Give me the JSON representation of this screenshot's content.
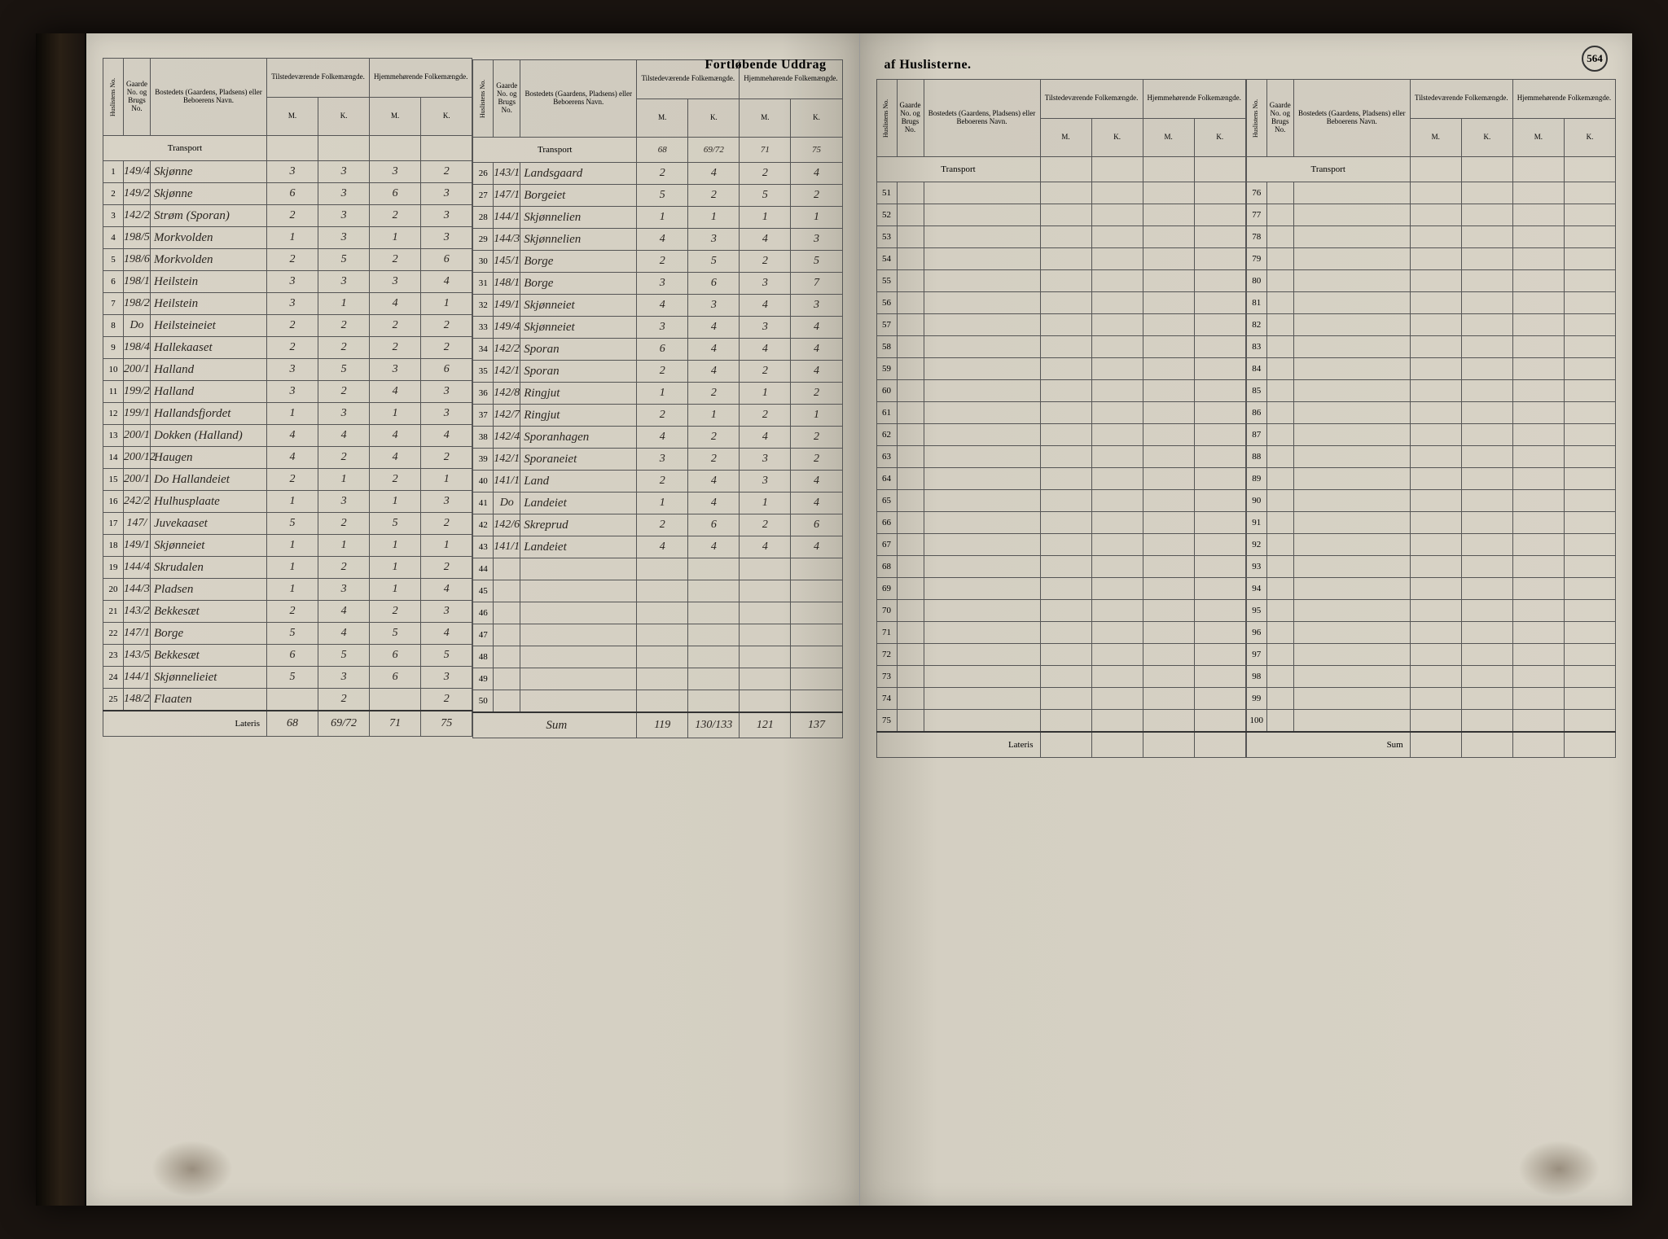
{
  "document": {
    "title": "Fortløbende Uddrag af Huslisterne.",
    "page_number": "564",
    "headers": {
      "huslistens": "Huslistens No.",
      "gaarde": "Gaarde No. og Brugs No.",
      "bosted": "Bostedets (Gaardens, Pladsens) eller Beboerens Navn.",
      "tilstede": "Tilstedeværende Folkemængde.",
      "hjemme": "Hjemmehørende Folkemængde.",
      "m": "M.",
      "k": "K.",
      "transport": "Transport",
      "lateris": "Lateris",
      "sum": "Sum"
    },
    "left_page": {
      "block_a": {
        "transport": [
          "",
          "",
          "",
          ""
        ],
        "rows": [
          {
            "n": "1",
            "g": "149/4",
            "name": "Skjønne",
            "tm": "3",
            "tk": "3",
            "hm": "3",
            "hk": "2"
          },
          {
            "n": "2",
            "g": "149/2",
            "name": "Skjønne",
            "tm": "6",
            "tk": "3",
            "hm": "6",
            "hk": "3"
          },
          {
            "n": "3",
            "g": "142/2",
            "name": "Strøm (Sporan)",
            "tm": "2",
            "tk": "3",
            "hm": "2",
            "hk": "3"
          },
          {
            "n": "4",
            "g": "198/5",
            "name": "Morkvolden",
            "tm": "1",
            "tk": "3",
            "hm": "1",
            "hk": "3"
          },
          {
            "n": "5",
            "g": "198/6",
            "name": "Morkvolden",
            "tm": "2",
            "tk": "5",
            "hm": "2",
            "hk": "6"
          },
          {
            "n": "6",
            "g": "198/1",
            "name": "Heilstein",
            "tm": "3",
            "tk": "3",
            "hm": "3",
            "hk": "4"
          },
          {
            "n": "7",
            "g": "198/2",
            "name": "Heilstein",
            "tm": "3",
            "tk": "1",
            "hm": "4",
            "hk": "1"
          },
          {
            "n": "8",
            "g": "Do",
            "name": "Heilsteineiet",
            "tm": "2",
            "tk": "2",
            "hm": "2",
            "hk": "2"
          },
          {
            "n": "9",
            "g": "198/4",
            "name": "Hallekaaset",
            "tm": "2",
            "tk": "2",
            "hm": "2",
            "hk": "2"
          },
          {
            "n": "10",
            "g": "200/1",
            "name": "Halland",
            "tm": "3",
            "tk": "5",
            "hm": "3",
            "hk": "6"
          },
          {
            "n": "11",
            "g": "199/2",
            "name": "Halland",
            "tm": "3",
            "tk": "2",
            "hm": "4",
            "hk": "3"
          },
          {
            "n": "12",
            "g": "199/1",
            "name": "Hallandsfjordet",
            "tm": "1",
            "tk": "3",
            "hm": "1",
            "hk": "3"
          },
          {
            "n": "13",
            "g": "200/1",
            "name": "Dokken (Halland)",
            "tm": "4",
            "tk": "4",
            "hm": "4",
            "hk": "4"
          },
          {
            "n": "14",
            "g": "200/12",
            "name": "Haugen",
            "tm": "4",
            "tk": "2",
            "hm": "4",
            "hk": "2"
          },
          {
            "n": "15",
            "g": "200/1",
            "name": "Do Hallandeiet",
            "tm": "2",
            "tk": "1",
            "hm": "2",
            "hk": "1"
          },
          {
            "n": "16",
            "g": "242/2",
            "name": "Hulhusplaate",
            "tm": "1",
            "tk": "3",
            "hm": "1",
            "hk": "3"
          },
          {
            "n": "17",
            "g": "147/",
            "name": "Juvekaaset",
            "tm": "5",
            "tk": "2",
            "hm": "5",
            "hk": "2"
          },
          {
            "n": "18",
            "g": "149/1",
            "name": "Skjønneiet",
            "tm": "1",
            "tk": "1",
            "hm": "1",
            "hk": "1"
          },
          {
            "n": "19",
            "g": "144/4",
            "name": "Skrudalen",
            "tm": "1",
            "tk": "2",
            "hm": "1",
            "hk": "2"
          },
          {
            "n": "20",
            "g": "144/3",
            "name": "Pladsen",
            "tm": "1",
            "tk": "3",
            "hm": "1",
            "hk": "4"
          },
          {
            "n": "21",
            "g": "143/2",
            "name": "Bekkesæt",
            "tm": "2",
            "tk": "4",
            "hm": "2",
            "hk": "3"
          },
          {
            "n": "22",
            "g": "147/1",
            "name": "Borge",
            "tm": "5",
            "tk": "4",
            "hm": "5",
            "hk": "4"
          },
          {
            "n": "23",
            "g": "143/5",
            "name": "Bekkesæt",
            "tm": "6",
            "tk": "5",
            "hm": "6",
            "hk": "5"
          },
          {
            "n": "24",
            "g": "144/1",
            "name": "Skjønnelieiet",
            "tm": "5",
            "tk": "3",
            "hm": "6",
            "hk": "3"
          },
          {
            "n": "25",
            "g": "148/2",
            "name": "Flaaten",
            "tm": "",
            "tk": "2",
            "hm": "",
            "hk": "2"
          }
        ],
        "lateris": [
          "68",
          "69/72",
          "71",
          "75"
        ]
      },
      "block_b": {
        "transport": [
          "68",
          "69/72",
          "71",
          "75"
        ],
        "rows": [
          {
            "n": "26",
            "g": "143/1",
            "name": "Landsgaard",
            "tm": "2",
            "tk": "4",
            "hm": "2",
            "hk": "4"
          },
          {
            "n": "27",
            "g": "147/1",
            "name": "Borgeiet",
            "tm": "5",
            "tk": "2",
            "hm": "5",
            "hk": "2"
          },
          {
            "n": "28",
            "g": "144/1",
            "name": "Skjønnelien",
            "tm": "1",
            "tk": "1",
            "hm": "1",
            "hk": "1"
          },
          {
            "n": "29",
            "g": "144/3",
            "name": "Skjønnelien",
            "tm": "4",
            "tk": "3",
            "hm": "4",
            "hk": "3"
          },
          {
            "n": "30",
            "g": "145/1",
            "name": "Borge",
            "tm": "2",
            "tk": "5",
            "hm": "2",
            "hk": "5"
          },
          {
            "n": "31",
            "g": "148/1",
            "name": "Borge",
            "tm": "3",
            "tk": "6",
            "hm": "3",
            "hk": "7"
          },
          {
            "n": "32",
            "g": "149/1",
            "name": "Skjønneiet",
            "tm": "4",
            "tk": "3",
            "hm": "4",
            "hk": "3"
          },
          {
            "n": "33",
            "g": "149/4",
            "name": "Skjønneiet",
            "tm": "3",
            "tk": "4",
            "hm": "3",
            "hk": "4"
          },
          {
            "n": "34",
            "g": "142/2",
            "name": "Sporan",
            "tm": "6",
            "tk": "4",
            "hm": "4",
            "hk": "4"
          },
          {
            "n": "35",
            "g": "142/1",
            "name": "Sporan",
            "tm": "2",
            "tk": "4",
            "hm": "2",
            "hk": "4"
          },
          {
            "n": "36",
            "g": "142/8",
            "name": "Ringjut",
            "tm": "1",
            "tk": "2",
            "hm": "1",
            "hk": "2"
          },
          {
            "n": "37",
            "g": "142/7",
            "name": "Ringjut",
            "tm": "2",
            "tk": "1",
            "hm": "2",
            "hk": "1"
          },
          {
            "n": "38",
            "g": "142/4",
            "name": "Sporanhagen",
            "tm": "4",
            "tk": "2",
            "hm": "4",
            "hk": "2"
          },
          {
            "n": "39",
            "g": "142/1",
            "name": "Sporaneiet",
            "tm": "3",
            "tk": "2",
            "hm": "3",
            "hk": "2"
          },
          {
            "n": "40",
            "g": "141/1",
            "name": "Land",
            "tm": "2",
            "tk": "4",
            "hm": "3",
            "hk": "4"
          },
          {
            "n": "41",
            "g": "Do",
            "name": "Landeiet",
            "tm": "1",
            "tk": "4",
            "hm": "1",
            "hk": "4"
          },
          {
            "n": "42",
            "g": "142/6",
            "name": "Skreprud",
            "tm": "2",
            "tk": "6",
            "hm": "2",
            "hk": "6"
          },
          {
            "n": "43",
            "g": "141/1",
            "name": "Landeiet",
            "tm": "4",
            "tk": "4",
            "hm": "4",
            "hk": "4"
          },
          {
            "n": "44",
            "g": "",
            "name": "",
            "tm": "",
            "tk": "",
            "hm": "",
            "hk": ""
          },
          {
            "n": "45",
            "g": "",
            "name": "",
            "tm": "",
            "tk": "",
            "hm": "",
            "hk": ""
          },
          {
            "n": "46",
            "g": "",
            "name": "",
            "tm": "",
            "tk": "",
            "hm": "",
            "hk": ""
          },
          {
            "n": "47",
            "g": "",
            "name": "",
            "tm": "",
            "tk": "",
            "hm": "",
            "hk": ""
          },
          {
            "n": "48",
            "g": "",
            "name": "",
            "tm": "",
            "tk": "",
            "hm": "",
            "hk": ""
          },
          {
            "n": "49",
            "g": "",
            "name": "",
            "tm": "",
            "tk": "",
            "hm": "",
            "hk": ""
          },
          {
            "n": "50",
            "g": "",
            "name": "",
            "tm": "",
            "tk": "",
            "hm": "",
            "hk": ""
          }
        ],
        "sum_label": "Sum",
        "lateris": [
          "119",
          "130/133",
          "121",
          "137"
        ]
      }
    },
    "right_page": {
      "block_c": {
        "start": 51,
        "end": 75
      },
      "block_d": {
        "start": 76,
        "end": 100
      }
    }
  }
}
